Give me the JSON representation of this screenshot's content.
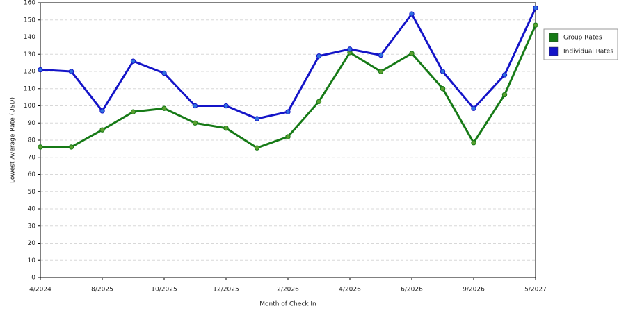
{
  "chart_data": {
    "type": "line",
    "x_label": "Month of Check In",
    "y_label": "Lowest Average Rate (USD)",
    "categories": [
      "4/2024",
      null,
      "8/2025",
      null,
      "10/2025",
      null,
      "12/2025",
      null,
      "2/2026",
      null,
      "4/2026",
      null,
      "6/2026",
      null,
      "9/2026",
      null,
      "5/2027"
    ],
    "series": [
      {
        "name": "Group Rates",
        "color": "#167a16",
        "values": [
          76,
          76,
          86,
          96.5,
          98.5,
          90,
          87,
          75.5,
          82,
          102.5,
          131,
          120,
          130.5,
          110,
          78.5,
          106.5,
          147
        ]
      },
      {
        "name": "Individual Rates",
        "color": "#1414c8",
        "values": [
          121,
          120,
          97,
          126,
          119,
          100,
          100,
          92.5,
          96.5,
          129,
          133,
          129.5,
          153.5,
          120,
          98.5,
          118,
          157
        ]
      }
    ],
    "ylim": [
      0,
      160
    ],
    "yticks": [
      0,
      10,
      20,
      30,
      40,
      50,
      60,
      70,
      80,
      90,
      100,
      110,
      120,
      130,
      140,
      150,
      160
    ],
    "grid": true,
    "legend": "right"
  }
}
